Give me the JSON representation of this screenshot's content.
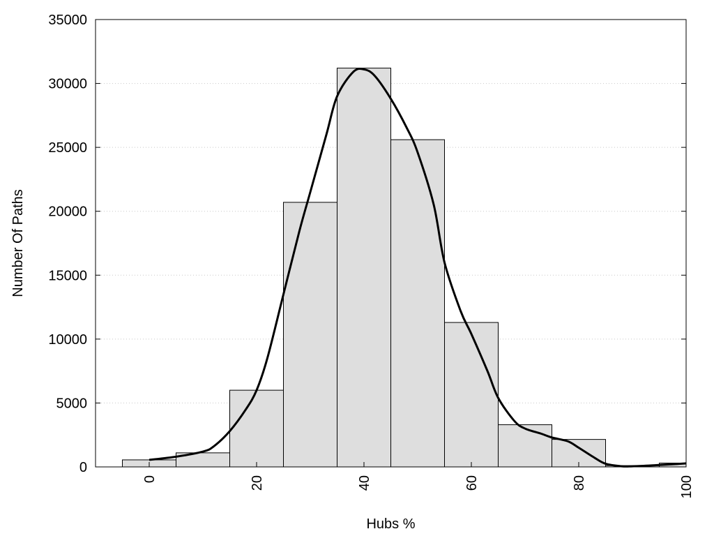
{
  "chart_data": {
    "type": "bar",
    "title": "",
    "xlabel": "Hubs %",
    "ylabel": "Number Of Paths",
    "xlim": [
      -10,
      100
    ],
    "ylim": [
      0,
      35000
    ],
    "grid": true,
    "xticks": [
      0,
      20,
      40,
      60,
      80,
      100
    ],
    "yticks": [
      0,
      5000,
      10000,
      15000,
      20000,
      25000,
      30000,
      35000
    ],
    "bin_width": 10,
    "bins": [
      {
        "center": 0,
        "value": 550
      },
      {
        "center": 10,
        "value": 1100
      },
      {
        "center": 20,
        "value": 6000
      },
      {
        "center": 30,
        "value": 20700
      },
      {
        "center": 40,
        "value": 31200
      },
      {
        "center": 50,
        "value": 25600
      },
      {
        "center": 60,
        "value": 11300
      },
      {
        "center": 70,
        "value": 3300
      },
      {
        "center": 80,
        "value": 2150
      },
      {
        "center": 90,
        "value": 100
      },
      {
        "center": 100,
        "value": 300
      }
    ],
    "density_curve": {
      "x": [
        0,
        5,
        10,
        12,
        15,
        18,
        20,
        22,
        25,
        28,
        30,
        33,
        35,
        38,
        40,
        42,
        45,
        48,
        50,
        53,
        55,
        58,
        60,
        63,
        65,
        68,
        70,
        73,
        75,
        78,
        80,
        83,
        85,
        88,
        90,
        93,
        95,
        98,
        100
      ],
      "y": [
        550,
        800,
        1200,
        1600,
        2800,
        4500,
        6000,
        8500,
        13500,
        18500,
        21500,
        26000,
        29000,
        30900,
        31100,
        30600,
        28800,
        26500,
        24600,
        20500,
        16000,
        12200,
        10400,
        7500,
        5400,
        3600,
        3000,
        2600,
        2300,
        2000,
        1500,
        700,
        250,
        50,
        50,
        100,
        150,
        220,
        280
      ]
    },
    "bar_color": "#dedede",
    "curve_color": "#000000"
  }
}
